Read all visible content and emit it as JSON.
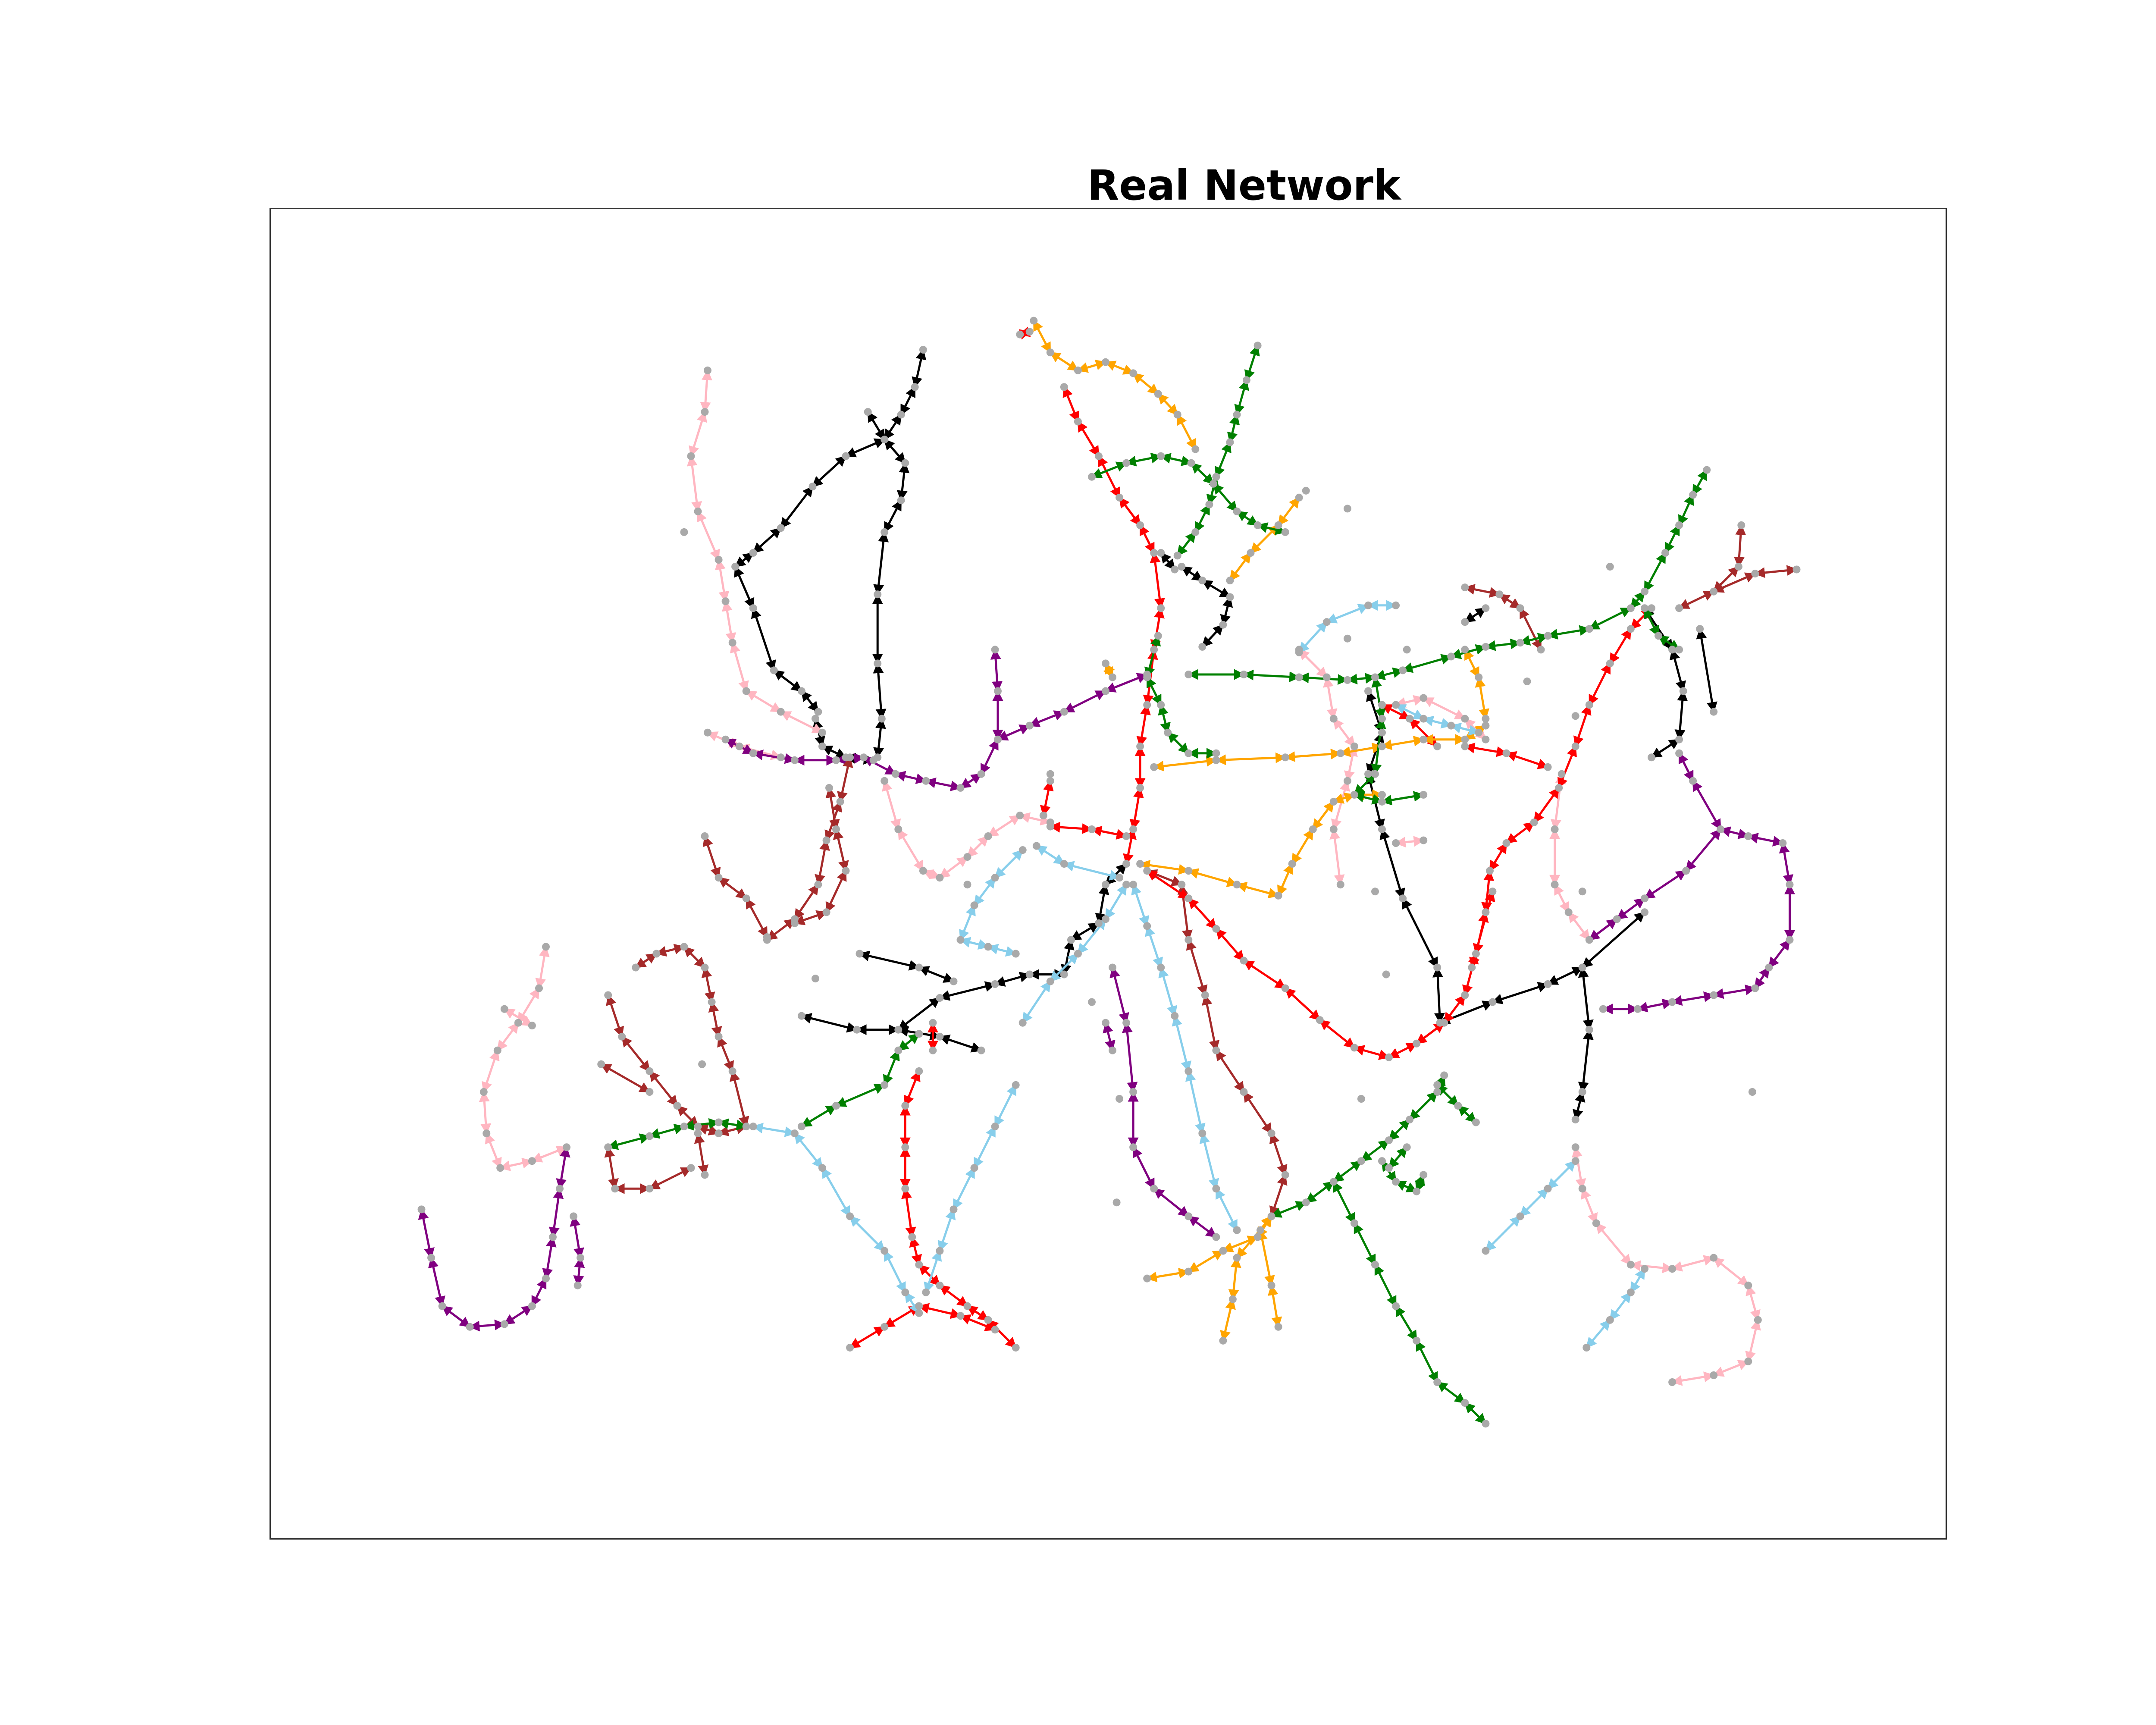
{
  "title": "Real Network",
  "colors": {
    "node": "#a9a9a9",
    "frame": "#333333",
    "lines": {
      "black": "#000000",
      "pink": "#ffb6c1",
      "purple": "#800080",
      "brown": "#a52a2a",
      "red": "#ff0000",
      "orange": "#ffa500",
      "green": "#008000",
      "skyblue": "#87ceeb"
    }
  }
}
